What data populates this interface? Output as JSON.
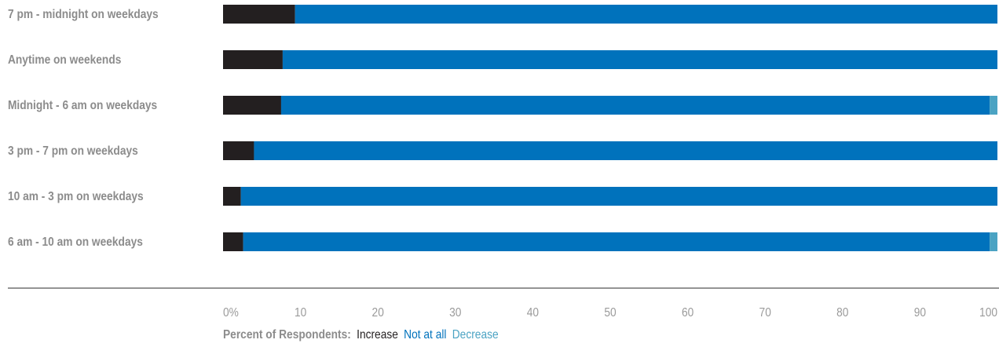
{
  "chart_data": {
    "type": "bar",
    "orientation": "horizontal",
    "stacked": true,
    "categories": [
      "7 pm - midnight on weekdays",
      "Anytime on weekends",
      "Midnight - 6 am on weekdays",
      "3 pm - 7 pm on weekdays",
      "10 am - 3 pm on weekdays",
      "6 am - 10 am on weekdays"
    ],
    "series": [
      {
        "name": "Increase",
        "color": "#231f20",
        "values": [
          9.3,
          7.7,
          7.5,
          4.0,
          2.3,
          2.6
        ]
      },
      {
        "name": "Not at all",
        "color": "#0072bc",
        "values": [
          90.7,
          92.3,
          91.5,
          96.0,
          97.7,
          96.4
        ]
      },
      {
        "name": "Decrease",
        "color": "#4ba3c3",
        "values": [
          0,
          0,
          1.0,
          0,
          0,
          1.0
        ]
      }
    ],
    "x_ticks": [
      "0%",
      "10",
      "20",
      "30",
      "40",
      "50",
      "60",
      "70",
      "80",
      "90",
      "100"
    ],
    "xlim": [
      0,
      100
    ],
    "legend_title": "Percent of Respondents:",
    "legend_placement": "bottom-left",
    "grid": false
  }
}
